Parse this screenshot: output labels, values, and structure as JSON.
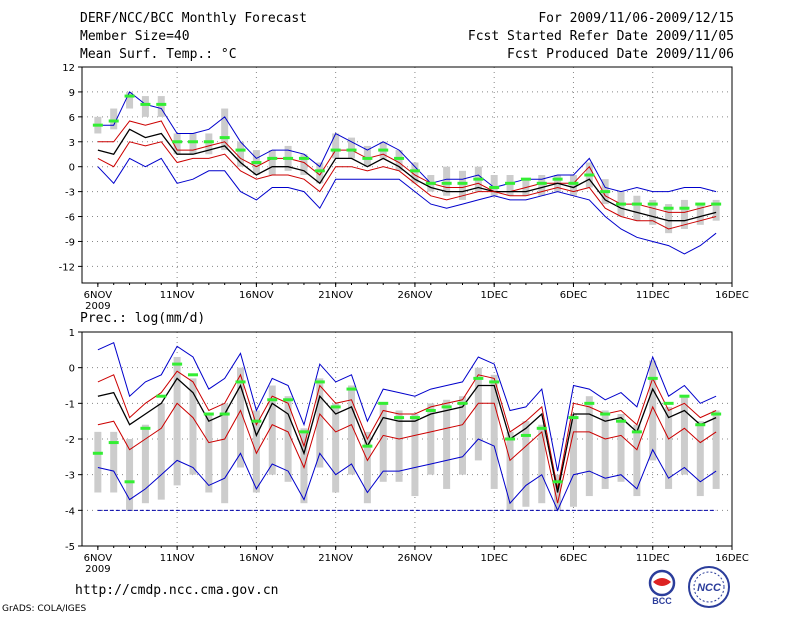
{
  "header": {
    "title": "DERF/NCC/BCC Monthly Forecast",
    "member_size": "Member Size=40",
    "variable1": "Mean Surf. Temp.: °C",
    "period": "For 2009/11/06-2009/12/15",
    "started": "Fcst Started Refer Date 2009/11/05",
    "produced": "Fcst Produced Date 2009/11/06"
  },
  "footer": {
    "url": "http://cmdp.ncc.cma.gov.cn",
    "grads": "GrADS: COLA/IGES",
    "logo_left_text": "BCC",
    "logo_right_text": "NCC"
  },
  "colors": {
    "mean": "#000000",
    "inner": "#cc0000",
    "outer": "#0000cc",
    "box": "#cccccc",
    "clim": "#33ee33",
    "grid": "#888888",
    "baseline": "#0000aa"
  },
  "chart_data": [
    {
      "type": "line",
      "title": "Mean Surf. Temp.: °C",
      "x_tick_labels": [
        "6NOV",
        "11NOV",
        "16NOV",
        "21NOV",
        "26NOV",
        "1DEC",
        "6DEC",
        "11DEC",
        "16DEC"
      ],
      "x_year_label": "2009",
      "ylim": [
        -14,
        12
      ],
      "y_ticks": [
        12,
        9,
        6,
        3,
        0,
        -3,
        -6,
        -9,
        -12
      ],
      "y_tick_labels": [
        "12",
        "9",
        "6",
        "3",
        "0",
        "-3",
        "-6",
        "-9",
        "-12"
      ],
      "x_days": [
        1,
        2,
        3,
        4,
        5,
        6,
        7,
        8,
        9,
        10,
        11,
        12,
        13,
        14,
        15,
        16,
        17,
        18,
        19,
        20,
        21,
        22,
        23,
        24,
        25,
        26,
        27,
        28,
        29,
        30,
        31,
        32,
        33,
        34,
        35,
        36,
        37,
        38,
        39,
        40
      ],
      "series": [
        {
          "name": "upper",
          "values": [
            5,
            5,
            9,
            7.5,
            7,
            4,
            4,
            4.5,
            6,
            3,
            1,
            2,
            2,
            1.5,
            0,
            4,
            3,
            2,
            3,
            2,
            0,
            -2,
            -1.5,
            -1.5,
            -1,
            -2.5,
            -2,
            -1.5,
            -1.5,
            -1,
            -1,
            1,
            -2.5,
            -3,
            -2.5,
            -3,
            -3,
            -2.5,
            -2.5,
            -3
          ]
        },
        {
          "name": "inner_upper",
          "values": [
            3,
            3,
            5.5,
            5,
            5.5,
            2,
            2,
            2.5,
            3,
            1,
            0,
            1,
            1,
            0.5,
            -1,
            2,
            2,
            1,
            1.5,
            0.5,
            -1,
            -2,
            -2.5,
            -2.5,
            -2,
            -3,
            -3,
            -2.5,
            -2,
            -2,
            -2,
            0,
            -3.5,
            -4.5,
            -4.5,
            -5,
            -5.5,
            -5.5,
            -5,
            -4.5
          ]
        },
        {
          "name": "mean",
          "values": [
            2,
            1.5,
            4.5,
            3.5,
            4,
            1.5,
            1.5,
            2,
            2.5,
            0.5,
            -1,
            0,
            0,
            -0.5,
            -2,
            1,
            1,
            0,
            1,
            0,
            -1.5,
            -2.5,
            -3,
            -3,
            -2.5,
            -3,
            -3,
            -3,
            -2.5,
            -2,
            -2.5,
            -1.5,
            -4,
            -5,
            -5.5,
            -6,
            -6.5,
            -6.5,
            -6,
            -5.5
          ]
        },
        {
          "name": "inner_lower",
          "values": [
            1,
            0,
            3,
            2.5,
            3,
            0.5,
            1,
            1,
            1.5,
            -0.5,
            -1.5,
            -1,
            -1,
            -1.5,
            -3,
            0,
            0,
            -0.5,
            0,
            -0.5,
            -2,
            -3.5,
            -4,
            -3.5,
            -3,
            -3,
            -3.5,
            -3.5,
            -3,
            -2.5,
            -3,
            -2.5,
            -5,
            -6,
            -6.5,
            -6.5,
            -7.5,
            -7,
            -6.5,
            -6
          ]
        },
        {
          "name": "lower",
          "values": [
            0,
            -2,
            1,
            0,
            1,
            -2,
            -1.5,
            -0.5,
            -0.5,
            -3,
            -4,
            -2.5,
            -2.5,
            -3,
            -5,
            -1.5,
            -1.5,
            -1.5,
            -1.5,
            -1.5,
            -3,
            -4.5,
            -5,
            -4.5,
            -4,
            -3.5,
            -4,
            -4,
            -3.5,
            -3,
            -3.5,
            -4,
            -6,
            -7.5,
            -8.5,
            -9,
            -9.5,
            -10.5,
            -9.5,
            -8
          ]
        }
      ],
      "clim": [
        5,
        5.5,
        8.5,
        7.5,
        7.5,
        3,
        3,
        3,
        3.5,
        2,
        0.5,
        1,
        1,
        1,
        -0.5,
        2,
        2,
        1,
        2,
        1,
        -0.5,
        -2,
        -2,
        -2,
        -1.5,
        -2.5,
        -2,
        -1.5,
        -2,
        -1.5,
        -2,
        -1,
        -3,
        -4.5,
        -4.5,
        -4.5,
        -5,
        -5,
        -4.5,
        -4.5
      ],
      "boxes": [
        [
          4,
          6
        ],
        [
          4.5,
          7
        ],
        [
          7,
          9
        ],
        [
          6,
          8.5
        ],
        [
          6,
          8.5
        ],
        [
          1.5,
          4
        ],
        [
          1.5,
          4
        ],
        [
          1.5,
          4
        ],
        [
          2,
          7
        ],
        [
          0,
          3
        ],
        [
          -1,
          2
        ],
        [
          -1,
          2
        ],
        [
          -0.5,
          2.5
        ],
        [
          -1,
          1.5
        ],
        [
          -2,
          0.5
        ],
        [
          1,
          4
        ],
        [
          1,
          3.5
        ],
        [
          0,
          2.5
        ],
        [
          1,
          3
        ],
        [
          -0.5,
          2
        ],
        [
          -2,
          0.5
        ],
        [
          -3,
          -1
        ],
        [
          -3.5,
          0
        ],
        [
          -4,
          -0.5
        ],
        [
          -3,
          0
        ],
        [
          -3.5,
          -1
        ],
        [
          -3.5,
          -1
        ],
        [
          -3.5,
          -1.5
        ],
        [
          -3.5,
          -1
        ],
        [
          -3,
          -1
        ],
        [
          -3.5,
          -1
        ],
        [
          -2.5,
          0.5
        ],
        [
          -4.5,
          -1.5
        ],
        [
          -6,
          -3
        ],
        [
          -6.5,
          -3.5
        ],
        [
          -7,
          -4
        ],
        [
          -8,
          -4.5
        ],
        [
          -7.5,
          -4
        ],
        [
          -7,
          -4.5
        ],
        [
          -6.5,
          -4
        ]
      ]
    },
    {
      "type": "line",
      "title": "Prec.: log(mm/d)",
      "x_tick_labels": [
        "6NOV",
        "11NOV",
        "16NOV",
        "21NOV",
        "26NOV",
        "1DEC",
        "6DEC",
        "11DEC",
        "16DEC"
      ],
      "x_year_label": "2009",
      "ylim": [
        -5,
        1
      ],
      "y_ticks": [
        1,
        0,
        -1,
        -2,
        -3,
        -4,
        -5
      ],
      "y_tick_labels": [
        "1",
        "0",
        "-1",
        "-2",
        "-3",
        "-4",
        "-5"
      ],
      "baseline": -4,
      "x_days": [
        1,
        2,
        3,
        4,
        5,
        6,
        7,
        8,
        9,
        10,
        11,
        12,
        13,
        14,
        15,
        16,
        17,
        18,
        19,
        20,
        21,
        22,
        23,
        24,
        25,
        26,
        27,
        28,
        29,
        30,
        31,
        32,
        33,
        34,
        35,
        36,
        37,
        38,
        39,
        40
      ],
      "series": [
        {
          "name": "upper",
          "values": [
            0.5,
            0.7,
            -0.8,
            -0.4,
            -0.2,
            0.6,
            0.3,
            -0.6,
            -0.3,
            0.4,
            -1.2,
            -0.3,
            -0.5,
            -1.6,
            0.1,
            -0.4,
            -0.2,
            -1.5,
            -0.6,
            -0.7,
            -0.8,
            -0.6,
            -0.5,
            -0.4,
            0.3,
            0.1,
            -1.2,
            -1.1,
            -0.6,
            -2.9,
            -0.5,
            -0.6,
            -0.9,
            -0.7,
            -1.1,
            0.3,
            -0.8,
            -0.5,
            -1.0,
            -0.8
          ]
        },
        {
          "name": "inner_upper",
          "values": [
            -0.4,
            -0.2,
            -1.4,
            -1.0,
            -0.7,
            -0.1,
            -0.4,
            -1.2,
            -1.0,
            -0.2,
            -1.6,
            -0.8,
            -1.0,
            -2.2,
            -0.5,
            -1.0,
            -0.9,
            -2.0,
            -1.2,
            -1.3,
            -1.3,
            -1.1,
            -1.0,
            -0.9,
            -0.2,
            -0.3,
            -1.8,
            -1.5,
            -1.1,
            -3.4,
            -1.0,
            -1.1,
            -1.3,
            -1.2,
            -1.6,
            -0.3,
            -1.2,
            -1.0,
            -1.4,
            -1.2
          ]
        },
        {
          "name": "mean",
          "values": [
            -0.8,
            -0.7,
            -1.6,
            -1.3,
            -1.0,
            -0.3,
            -0.7,
            -1.5,
            -1.3,
            -0.5,
            -1.9,
            -1.0,
            -1.3,
            -2.4,
            -0.8,
            -1.3,
            -1.1,
            -2.2,
            -1.4,
            -1.5,
            -1.5,
            -1.3,
            -1.2,
            -1.1,
            -0.5,
            -0.5,
            -2.0,
            -1.7,
            -1.3,
            -3.5,
            -1.3,
            -1.3,
            -1.5,
            -1.4,
            -1.8,
            -0.6,
            -1.4,
            -1.2,
            -1.6,
            -1.4
          ]
        },
        {
          "name": "inner_lower",
          "values": [
            -1.6,
            -1.5,
            -2.3,
            -2.0,
            -1.7,
            -1.0,
            -1.4,
            -2.1,
            -2.0,
            -1.2,
            -2.4,
            -1.6,
            -1.8,
            -2.8,
            -1.3,
            -1.8,
            -1.6,
            -2.6,
            -1.9,
            -2.0,
            -1.9,
            -1.8,
            -1.7,
            -1.6,
            -1.0,
            -1.0,
            -2.6,
            -2.2,
            -1.8,
            -3.8,
            -1.8,
            -1.8,
            -2.0,
            -1.9,
            -2.3,
            -1.1,
            -2.0,
            -1.7,
            -2.1,
            -1.8
          ]
        },
        {
          "name": "lower",
          "values": [
            -2.8,
            -2.9,
            -3.7,
            -3.4,
            -3.0,
            -2.6,
            -2.8,
            -3.3,
            -3.1,
            -2.4,
            -3.4,
            -2.7,
            -2.9,
            -3.7,
            -2.4,
            -3.0,
            -2.7,
            -3.5,
            -2.9,
            -2.9,
            -2.8,
            -2.7,
            -2.6,
            -2.5,
            -2.0,
            -2.2,
            -3.8,
            -3.3,
            -3.0,
            -4.0,
            -3.0,
            -2.9,
            -3.1,
            -3.0,
            -3.4,
            -2.3,
            -3.1,
            -2.8,
            -3.2,
            -2.9
          ]
        }
      ],
      "clim": [
        -2.4,
        -2.1,
        -3.2,
        -1.7,
        -0.8,
        0.1,
        -0.2,
        -1.3,
        -1.3,
        -0.4,
        -1.5,
        -0.9,
        -0.9,
        -1.8,
        -0.4,
        -1.1,
        -0.6,
        -2.2,
        -1.0,
        -1.4,
        -1.4,
        -1.2,
        -1.1,
        -1.0,
        -0.3,
        -0.4,
        -2.0,
        -1.9,
        -1.7,
        -3.2,
        -1.4,
        -1.0,
        -1.3,
        -1.5,
        -1.8,
        -0.3,
        -1.0,
        -0.8,
        -1.6,
        -1.3
      ],
      "boxes": [
        [
          -3.5,
          -1.8
        ],
        [
          -3.5,
          -1.8
        ],
        [
          -4.0,
          -2.0
        ],
        [
          -3.8,
          -1.6
        ],
        [
          -3.7,
          -1.0
        ],
        [
          -3.3,
          0.3
        ],
        [
          -3.0,
          -0.3
        ],
        [
          -3.5,
          -1.3
        ],
        [
          -3.8,
          -1.0
        ],
        [
          -2.8,
          0.0
        ],
        [
          -3.5,
          -1.2
        ],
        [
          -3.0,
          -0.5
        ],
        [
          -3.2,
          -0.8
        ],
        [
          -3.8,
          -1.7
        ],
        [
          -2.8,
          -0.3
        ],
        [
          -3.5,
          -1.0
        ],
        [
          -3.0,
          -0.5
        ],
        [
          -3.8,
          -1.8
        ],
        [
          -3.2,
          -1.0
        ],
        [
          -3.2,
          -1.2
        ],
        [
          -3.6,
          -1.3
        ],
        [
          -3.0,
          -1.0
        ],
        [
          -3.4,
          -0.9
        ],
        [
          -3.0,
          -0.8
        ],
        [
          -2.6,
          0.0
        ],
        [
          -3.4,
          -0.2
        ],
        [
          -4.0,
          -1.8
        ],
        [
          -3.9,
          -1.5
        ],
        [
          -3.8,
          -1.6
        ],
        [
          -4.0,
          -3.0
        ],
        [
          -3.9,
          -1.3
        ],
        [
          -3.6,
          -0.8
        ],
        [
          -3.4,
          -1.2
        ],
        [
          -3.2,
          -1.3
        ],
        [
          -3.6,
          -1.6
        ],
        [
          -2.6,
          0.2
        ],
        [
          -3.4,
          -1.1
        ],
        [
          -3.0,
          -0.8
        ],
        [
          -3.6,
          -1.5
        ],
        [
          -3.4,
          -1.2
        ]
      ]
    }
  ]
}
